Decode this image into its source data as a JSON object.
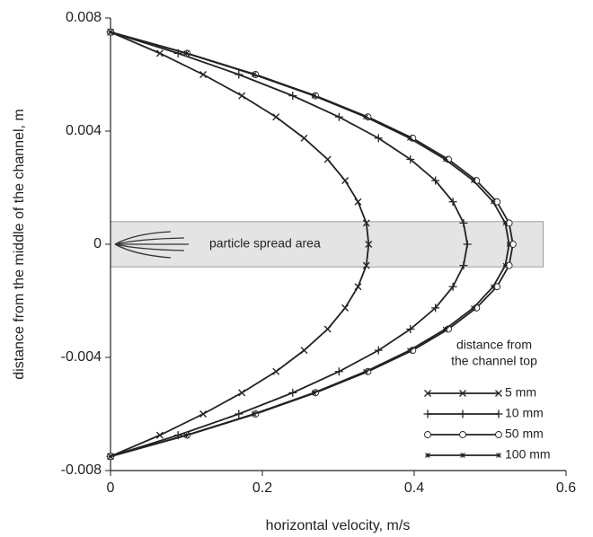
{
  "chart_data": {
    "type": "line",
    "xlabel": "horizontal velocity, m/s",
    "ylabel": "distance from the middle of the channel, m",
    "xlim": [
      0,
      0.6
    ],
    "ylim": [
      -0.008,
      0.008
    ],
    "xticks": [
      0,
      0.2,
      0.4,
      0.6
    ],
    "yticks": [
      -0.008,
      -0.004,
      0,
      0.004,
      0.008
    ],
    "y": [
      -0.0075,
      -0.00675,
      -0.006,
      -0.00525,
      -0.0045,
      -0.00375,
      -0.003,
      -0.00225,
      -0.0015,
      -0.00075,
      0,
      0.00075,
      0.0015,
      0.00225,
      0.003,
      0.00375,
      0.0045,
      0.00525,
      0.006,
      0.00675,
      0.0075
    ],
    "series": [
      {
        "name": "5 mm",
        "color": "#222222",
        "marker": "x",
        "values": [
          0,
          0.065,
          0.122,
          0.173,
          0.218,
          0.255,
          0.286,
          0.309,
          0.326,
          0.337,
          0.34,
          0.337,
          0.326,
          0.309,
          0.286,
          0.255,
          0.218,
          0.173,
          0.122,
          0.065,
          0
        ]
      },
      {
        "name": "10 mm",
        "color": "#222222",
        "marker": "plus",
        "values": [
          0,
          0.089,
          0.169,
          0.24,
          0.301,
          0.353,
          0.395,
          0.428,
          0.451,
          0.465,
          0.47,
          0.465,
          0.451,
          0.428,
          0.395,
          0.353,
          0.301,
          0.24,
          0.169,
          0.089,
          0
        ]
      },
      {
        "name": "50 mm",
        "color": "#222222",
        "marker": "circle",
        "values": [
          0,
          0.101,
          0.191,
          0.27,
          0.339,
          0.398,
          0.445,
          0.482,
          0.509,
          0.525,
          0.53,
          0.525,
          0.509,
          0.482,
          0.445,
          0.398,
          0.339,
          0.27,
          0.191,
          0.101,
          0
        ]
      },
      {
        "name": "100 mm",
        "color": "#222222",
        "marker": "star",
        "values": [
          0,
          0.1,
          0.189,
          0.268,
          0.336,
          0.394,
          0.441,
          0.478,
          0.504,
          0.52,
          0.525,
          0.52,
          0.504,
          0.478,
          0.441,
          0.394,
          0.336,
          0.268,
          0.189,
          0.1,
          0
        ]
      }
    ],
    "legend_title": [
      "distance from",
      "the channel top"
    ],
    "legend": "lower right",
    "region": {
      "text": "particle spread area",
      "x": [
        0,
        0.57
      ],
      "y": [
        -0.0008,
        0.0008
      ],
      "color": "#e4e4e4"
    }
  }
}
